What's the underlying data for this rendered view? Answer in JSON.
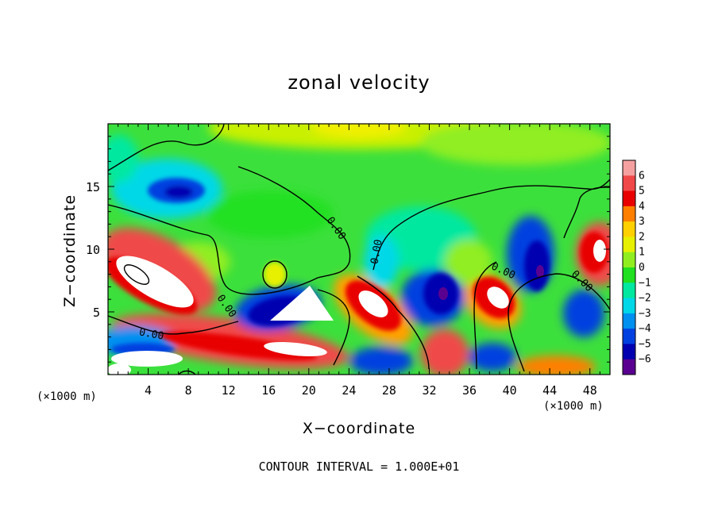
{
  "chart_data": {
    "type": "heatmap",
    "title": "zonal velocity",
    "xlabel": "X−coordinate",
    "ylabel": "Z−coordinate",
    "x_unit": "(×1000 m)",
    "z_unit": "(×1000 m)",
    "xlim": [
      0,
      50
    ],
    "ylim": [
      0,
      20
    ],
    "x_ticks": [
      "4",
      "8",
      "12",
      "16",
      "20",
      "24",
      "28",
      "32",
      "36",
      "40",
      "44",
      "48"
    ],
    "x_tick_values": [
      4,
      8,
      12,
      16,
      20,
      24,
      28,
      32,
      36,
      40,
      44,
      48
    ],
    "y_ticks": [
      "5",
      "10",
      "15"
    ],
    "y_tick_values": [
      5,
      10,
      15
    ],
    "colorbar": {
      "labels": [
        "6",
        "5",
        "4",
        "3",
        "2",
        "1",
        "0",
        "−1",
        "−2",
        "−3",
        "−4",
        "−5",
        "−6"
      ],
      "colors": [
        "#f5a0a0",
        "#f04848",
        "#e80000",
        "#ff7f00",
        "#ffd000",
        "#e6f000",
        "#90ee20",
        "#20e020",
        "#00e8a0",
        "#00d8e8",
        "#0090f0",
        "#0040e0",
        "#0000b0",
        "#5a0090"
      ]
    },
    "contour_level_label": "0.00",
    "contour_interval_text": "CONTOUR INTERVAL = 1.000E+01"
  }
}
